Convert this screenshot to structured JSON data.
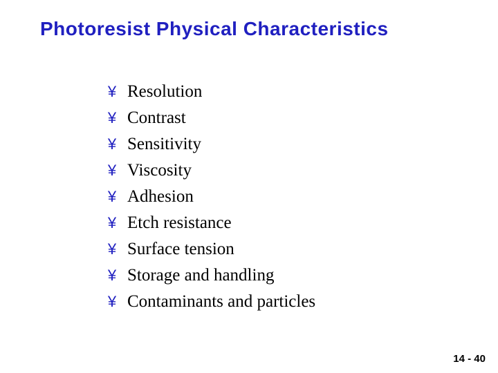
{
  "slide": {
    "title": "Photoresist Physical Characteristics",
    "title_color": "#2020c0",
    "title_fontsize": 28,
    "bullet_glyph": "¥",
    "bullet_color": "#2020c0",
    "bullet_fontsize": 22,
    "item_color": "#000000",
    "item_fontsize": 25,
    "line_height": 34,
    "items": [
      "Resolution",
      "Contrast",
      "Sensitivity",
      "Viscosity",
      "Adhesion",
      "Etch resistance",
      "Surface tension",
      "Storage and handling",
      "Contaminants and particles"
    ],
    "page_number": "14 - 40",
    "page_number_color": "#000000",
    "page_number_fontsize": 15,
    "background_color": "#ffffff"
  }
}
